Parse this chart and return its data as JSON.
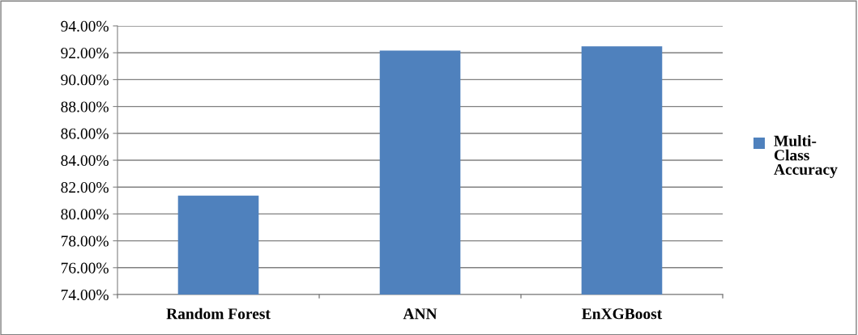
{
  "chart_data": {
    "type": "bar",
    "categories": [
      "Random Forest",
      "ANN",
      "EnXGBoost"
    ],
    "series": [
      {
        "name": "Multi-Class Accuracy",
        "color": "#4f81bd",
        "values": [
          81.37,
          92.16,
          92.48
        ]
      }
    ],
    "ylim": [
      74,
      94
    ],
    "yticks": [
      {
        "value": 74,
        "label": "74.00%"
      },
      {
        "value": 76,
        "label": "76.00%"
      },
      {
        "value": 78,
        "label": "78.00%"
      },
      {
        "value": 80,
        "label": "80.00%"
      },
      {
        "value": 82,
        "label": "82.00%"
      },
      {
        "value": 84,
        "label": "84.00%"
      },
      {
        "value": 86,
        "label": "86.00%"
      },
      {
        "value": 88,
        "label": "88.00%"
      },
      {
        "value": 90,
        "label": "90.00%"
      },
      {
        "value": 92,
        "label": "92.00%"
      },
      {
        "value": 94,
        "label": "94.00%"
      }
    ],
    "grid": "y",
    "legend": "right"
  }
}
